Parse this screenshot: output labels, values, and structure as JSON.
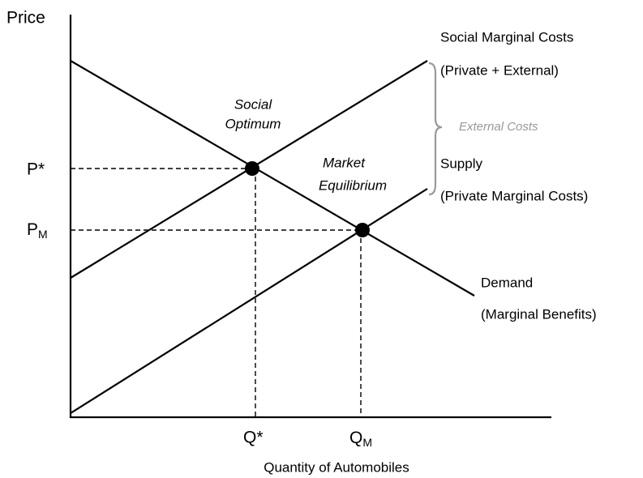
{
  "axes": {
    "y_label": "Price",
    "x_label": "Quantity of Automobiles"
  },
  "price_labels": {
    "optimum": "P*",
    "market": {
      "base": "P",
      "sub": "M"
    }
  },
  "quantity_labels": {
    "optimum": "Q*",
    "market": {
      "base": "Q",
      "sub": "M"
    }
  },
  "points": {
    "social_optimum": [
      "Social",
      "Optimum"
    ],
    "market_equilibrium": [
      "Market",
      "Equilibrium"
    ]
  },
  "curves": {
    "social_marginal_costs": [
      "Social Marginal Costs",
      "(Private + External)"
    ],
    "supply": [
      "Supply",
      "(Private Marginal Costs)"
    ],
    "demand": [
      "Demand",
      "(Marginal Benefits)"
    ]
  },
  "external_costs": "External Costs"
}
